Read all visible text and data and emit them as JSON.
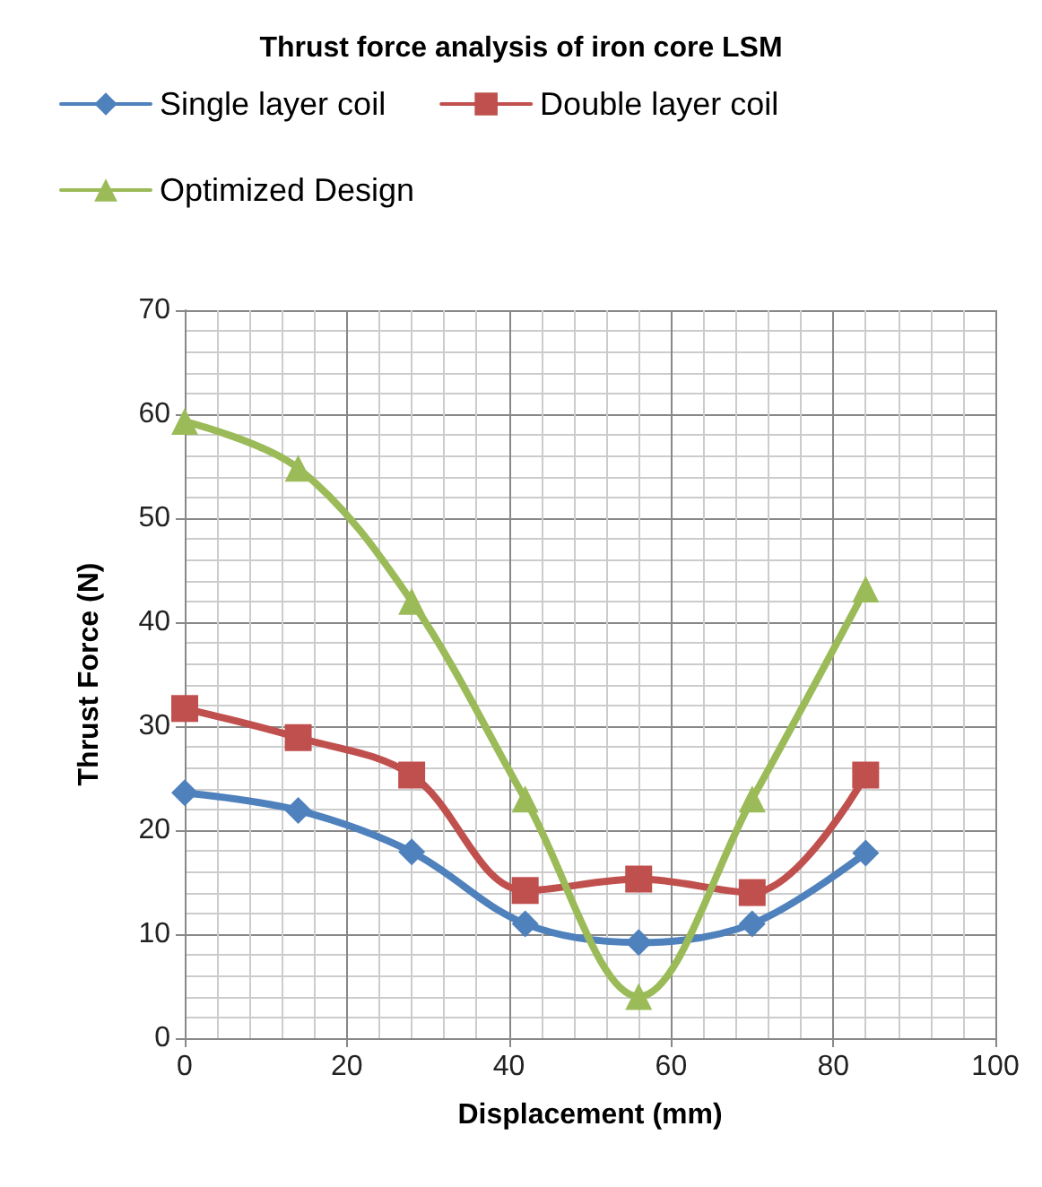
{
  "chart_data": {
    "type": "line",
    "title": "Thrust force analysis of iron core LSM",
    "xlabel": "Displacement (mm)",
    "ylabel": "Thrust Force (N)",
    "x": [
      0,
      14,
      28,
      42,
      56,
      70,
      84
    ],
    "series": [
      {
        "name": "Single layer coil",
        "color": "#4f81bd",
        "marker": "diamond",
        "values": [
          23.6,
          21.9,
          17.9,
          11.0,
          9.2,
          11.0,
          17.8
        ]
      },
      {
        "name": "Double layer coil",
        "color": "#c0504d",
        "marker": "square",
        "values": [
          31.7,
          28.9,
          25.3,
          14.2,
          15.3,
          14.0,
          25.3
        ]
      },
      {
        "name": "Optimized Design",
        "color": "#9bbb59",
        "marker": "triangle",
        "values": [
          59.3,
          54.8,
          42.0,
          23.0,
          4.0,
          23.0,
          43.2
        ]
      }
    ],
    "xlim": [
      0,
      100
    ],
    "xticks": [
      0,
      20,
      40,
      60,
      80,
      100
    ],
    "ylim": [
      0,
      70
    ],
    "yticks": [
      0,
      10,
      20,
      30,
      40,
      50,
      60,
      70
    ],
    "grid": true,
    "legend": "top left",
    "line_style": "solid"
  }
}
